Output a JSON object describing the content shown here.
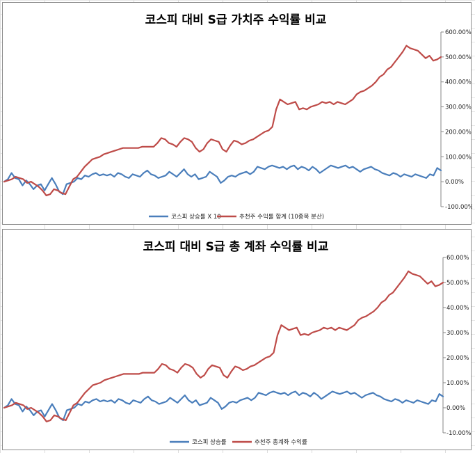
{
  "chart_data": [
    {
      "type": "line",
      "title": "코스피 대비 S급 가치주 수익률 비교",
      "xlabel": "",
      "ylabel": "",
      "ylim": [
        -1.0,
        6.0
      ],
      "y_ticks": [
        "600.00%",
        "500.00%",
        "400.00%",
        "300.00%",
        "200.00%",
        "100.00%",
        "0.00%",
        "-100.00%"
      ],
      "y_tick_values": [
        6,
        5,
        4,
        3,
        2,
        1,
        0,
        -1
      ],
      "legend_position": "bottom",
      "series": [
        {
          "name": "코스피 상승률 X 10",
          "color": "#4a7ebb",
          "values": [
            0,
            0.1,
            0.35,
            0.15,
            0.1,
            -0.15,
            0.05,
            -0.1,
            -0.3,
            -0.15,
            -0.1,
            -0.35,
            -0.1,
            0.15,
            -0.1,
            -0.4,
            -0.5,
            -0.1,
            -0.05,
            0,
            0.15,
            0.1,
            0.25,
            0.2,
            0.3,
            0.35,
            0.25,
            0.3,
            0.25,
            0.3,
            0.2,
            0.35,
            0.3,
            0.2,
            0.15,
            0.3,
            0.25,
            0.2,
            0.35,
            0.45,
            0.3,
            0.25,
            0.15,
            0.2,
            0.25,
            0.4,
            0.3,
            0.2,
            0.35,
            0.5,
            0.3,
            0.2,
            0.3,
            0.1,
            0.15,
            0.2,
            0.4,
            0.3,
            0.2,
            -0.05,
            0.05,
            0.2,
            0.25,
            0.2,
            0.3,
            0.35,
            0.4,
            0.3,
            0.4,
            0.6,
            0.55,
            0.5,
            0.6,
            0.65,
            0.6,
            0.55,
            0.6,
            0.5,
            0.6,
            0.65,
            0.5,
            0.6,
            0.55,
            0.45,
            0.6,
            0.5,
            0.35,
            0.45,
            0.55,
            0.65,
            0.6,
            0.55,
            0.6,
            0.65,
            0.55,
            0.6,
            0.5,
            0.4,
            0.5,
            0.55,
            0.6,
            0.5,
            0.45,
            0.35,
            0.3,
            0.25,
            0.35,
            0.3,
            0.2,
            0.3,
            0.25,
            0.2,
            0.3,
            0.25,
            0.2,
            0.15,
            0.3,
            0.25,
            0.55,
            0.45
          ]
        },
        {
          "name": "추천주 수익률 합계 (10종목 분산)",
          "color": "#be4b48",
          "values": [
            0,
            0.05,
            0.1,
            0.2,
            0.15,
            0.1,
            -0.05,
            0,
            -0.1,
            -0.2,
            -0.35,
            -0.55,
            -0.5,
            -0.3,
            -0.35,
            -0.45,
            -0.5,
            -0.2,
            0.1,
            0.2,
            0.4,
            0.6,
            0.75,
            0.9,
            0.95,
            1.0,
            1.1,
            1.15,
            1.2,
            1.25,
            1.3,
            1.35,
            1.35,
            1.35,
            1.35,
            1.35,
            1.4,
            1.4,
            1.4,
            1.4,
            1.55,
            1.75,
            1.7,
            1.55,
            1.5,
            1.4,
            1.6,
            1.75,
            1.7,
            1.6,
            1.35,
            1.2,
            1.3,
            1.55,
            1.7,
            1.65,
            1.6,
            1.3,
            1.2,
            1.45,
            1.65,
            1.6,
            1.5,
            1.55,
            1.65,
            1.7,
            1.8,
            1.9,
            2.0,
            2.05,
            2.2,
            2.9,
            3.3,
            3.2,
            3.1,
            3.15,
            3.2,
            2.9,
            2.95,
            2.9,
            3.0,
            3.05,
            3.1,
            3.2,
            3.15,
            3.2,
            3.1,
            3.2,
            3.15,
            3.1,
            3.2,
            3.3,
            3.5,
            3.6,
            3.65,
            3.75,
            3.85,
            4.0,
            4.2,
            4.3,
            4.5,
            4.6,
            4.8,
            5.0,
            5.2,
            5.45,
            5.35,
            5.3,
            5.25,
            5.1,
            4.95,
            5.05,
            4.85,
            4.9,
            5.0
          ]
        }
      ]
    },
    {
      "type": "line",
      "title": "코스피 대비 S급 총 계좌 수익률 비교",
      "xlabel": "",
      "ylabel": "",
      "ylim": [
        -0.1,
        0.6
      ],
      "y_ticks": [
        "60.00%",
        "50.00%",
        "40.00%",
        "30.00%",
        "20.00%",
        "10.00%",
        "0.00%",
        "-10.00%"
      ],
      "y_tick_values": [
        0.6,
        0.5,
        0.4,
        0.3,
        0.2,
        0.1,
        0,
        -0.1
      ],
      "legend_position": "bottom",
      "series": [
        {
          "name": "코스피 상승률",
          "color": "#4a7ebb",
          "values": [
            0,
            0.01,
            0.035,
            0.015,
            0.01,
            -0.015,
            0.005,
            -0.01,
            -0.03,
            -0.015,
            -0.01,
            -0.035,
            -0.01,
            0.015,
            -0.01,
            -0.04,
            -0.05,
            -0.01,
            -0.005,
            0,
            0.015,
            0.01,
            0.025,
            0.02,
            0.03,
            0.035,
            0.025,
            0.03,
            0.025,
            0.03,
            0.02,
            0.035,
            0.03,
            0.02,
            0.015,
            0.03,
            0.025,
            0.02,
            0.035,
            0.045,
            0.03,
            0.025,
            0.015,
            0.02,
            0.025,
            0.04,
            0.03,
            0.02,
            0.035,
            0.05,
            0.03,
            0.02,
            0.03,
            0.01,
            0.015,
            0.02,
            0.04,
            0.03,
            0.02,
            -0.005,
            0.005,
            0.02,
            0.025,
            0.02,
            0.03,
            0.035,
            0.04,
            0.03,
            0.04,
            0.06,
            0.055,
            0.05,
            0.06,
            0.065,
            0.06,
            0.055,
            0.06,
            0.05,
            0.06,
            0.065,
            0.05,
            0.06,
            0.055,
            0.045,
            0.06,
            0.05,
            0.035,
            0.045,
            0.055,
            0.065,
            0.06,
            0.055,
            0.06,
            0.065,
            0.055,
            0.06,
            0.05,
            0.04,
            0.05,
            0.055,
            0.06,
            0.05,
            0.045,
            0.035,
            0.03,
            0.025,
            0.035,
            0.03,
            0.02,
            0.03,
            0.025,
            0.02,
            0.03,
            0.025,
            0.02,
            0.015,
            0.03,
            0.025,
            0.055,
            0.045
          ]
        },
        {
          "name": "추천주 총계좌 수익률",
          "color": "#be4b48",
          "values": [
            0,
            0.005,
            0.01,
            0.02,
            0.015,
            0.01,
            -0.005,
            0,
            -0.01,
            -0.02,
            -0.035,
            -0.055,
            -0.05,
            -0.03,
            -0.035,
            -0.045,
            -0.05,
            -0.02,
            0.01,
            0.02,
            0.04,
            0.06,
            0.075,
            0.09,
            0.095,
            0.1,
            0.11,
            0.115,
            0.12,
            0.125,
            0.13,
            0.135,
            0.135,
            0.135,
            0.135,
            0.135,
            0.14,
            0.14,
            0.14,
            0.14,
            0.155,
            0.175,
            0.17,
            0.155,
            0.15,
            0.14,
            0.16,
            0.175,
            0.17,
            0.16,
            0.135,
            0.12,
            0.13,
            0.155,
            0.17,
            0.165,
            0.16,
            0.13,
            0.12,
            0.145,
            0.165,
            0.16,
            0.15,
            0.155,
            0.165,
            0.17,
            0.18,
            0.19,
            0.2,
            0.205,
            0.22,
            0.29,
            0.33,
            0.32,
            0.31,
            0.315,
            0.32,
            0.29,
            0.295,
            0.29,
            0.3,
            0.305,
            0.31,
            0.32,
            0.315,
            0.32,
            0.31,
            0.32,
            0.315,
            0.31,
            0.32,
            0.33,
            0.35,
            0.36,
            0.365,
            0.375,
            0.385,
            0.4,
            0.42,
            0.43,
            0.45,
            0.46,
            0.48,
            0.5,
            0.52,
            0.545,
            0.535,
            0.53,
            0.525,
            0.51,
            0.495,
            0.505,
            0.485,
            0.49,
            0.5
          ]
        }
      ]
    }
  ]
}
